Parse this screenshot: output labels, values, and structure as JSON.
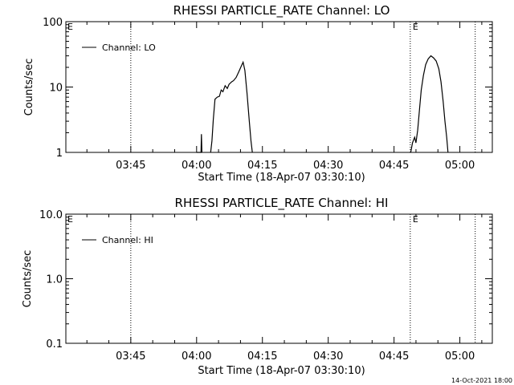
{
  "footer_timestamp": "14-Oct-2021 18:00",
  "chart_data": [
    {
      "type": "line",
      "title": "RHESSI PARTICLE_RATE Channel: LO",
      "xlabel": "Start Time (18-Apr-07 03:30:10)",
      "ylabel": "Counts/sec",
      "yscale": "log",
      "ylim": [
        1,
        100
      ],
      "yticks": [
        1,
        10,
        100
      ],
      "ytick_labels": [
        "1",
        "10",
        "100"
      ],
      "xlim_minutes": [
        0,
        97.2
      ],
      "xticks_minutes": [
        14.8,
        29.8,
        44.8,
        59.8,
        74.8,
        89.8
      ],
      "xtick_labels": [
        "03:45",
        "04:00",
        "04:15",
        "04:30",
        "04:45",
        "05:00"
      ],
      "legend": "Channel: LO",
      "legend_position": "top-left",
      "annotations": [
        {
          "text": "E",
          "x_minutes": 0
        },
        {
          "text": "E",
          "x_minutes": 78.7
        }
      ],
      "dotted_vertical_lines_minutes": [
        14.8,
        78.5,
        93.3
      ],
      "series": [
        {
          "name": "Channel: LO",
          "segments": [
            [
              [
                29.8,
                1
              ],
              [
                30.8,
                1
              ],
              [
                30.9,
                1.9
              ],
              [
                31.0,
                1
              ]
            ],
            [
              [
                33.0,
                1
              ],
              [
                33.3,
                1.5
              ],
              [
                33.6,
                3.2
              ],
              [
                34.0,
                6.5
              ],
              [
                34.5,
                7
              ],
              [
                35.0,
                7.2
              ],
              [
                35.4,
                9
              ],
              [
                35.8,
                8.5
              ],
              [
                36.3,
                10.5
              ],
              [
                36.8,
                9.5
              ],
              [
                37.2,
                11
              ],
              [
                37.8,
                12
              ],
              [
                38.2,
                12.5
              ],
              [
                38.8,
                14
              ],
              [
                39.4,
                17
              ],
              [
                40.0,
                21
              ],
              [
                40.4,
                24
              ],
              [
                40.8,
                18
              ],
              [
                41.3,
                8
              ],
              [
                41.8,
                3
              ],
              [
                42.2,
                1.5
              ],
              [
                42.5,
                1
              ]
            ],
            [
              [
                78.6,
                1
              ],
              [
                79.0,
                1.4
              ],
              [
                79.5,
                1.7
              ],
              [
                79.8,
                1.4
              ],
              [
                80.2,
                2.2
              ],
              [
                80.6,
                4.5
              ],
              [
                81.0,
                9
              ],
              [
                81.5,
                15
              ],
              [
                82.0,
                22
              ],
              [
                82.6,
                27
              ],
              [
                83.2,
                30
              ],
              [
                83.8,
                28
              ],
              [
                84.4,
                25
              ],
              [
                85.0,
                19
              ],
              [
                85.5,
                12
              ],
              [
                86.0,
                6
              ],
              [
                86.4,
                3
              ],
              [
                86.8,
                1.7
              ],
              [
                87.1,
                1
              ]
            ]
          ]
        }
      ]
    },
    {
      "type": "line",
      "title": "RHESSI PARTICLE_RATE Channel: HI",
      "xlabel": "Start Time (18-Apr-07 03:30:10)",
      "ylabel": "Counts/sec",
      "yscale": "log",
      "ylim": [
        0.1,
        10
      ],
      "yticks": [
        0.1,
        1,
        10
      ],
      "ytick_labels": [
        "0.1",
        "1.0",
        "10.0"
      ],
      "xlim_minutes": [
        0,
        97.2
      ],
      "xticks_minutes": [
        14.8,
        29.8,
        44.8,
        59.8,
        74.8,
        89.8
      ],
      "xtick_labels": [
        "03:45",
        "04:00",
        "04:15",
        "04:30",
        "04:45",
        "05:00"
      ],
      "legend": "Channel: HI",
      "legend_position": "top-left",
      "annotations": [
        {
          "text": "E",
          "x_minutes": 0
        },
        {
          "text": "E",
          "x_minutes": 78.7
        }
      ],
      "dotted_vertical_lines_minutes": [
        14.8,
        78.5,
        93.3
      ],
      "series": [
        {
          "name": "Channel: HI",
          "segments": []
        }
      ]
    }
  ]
}
